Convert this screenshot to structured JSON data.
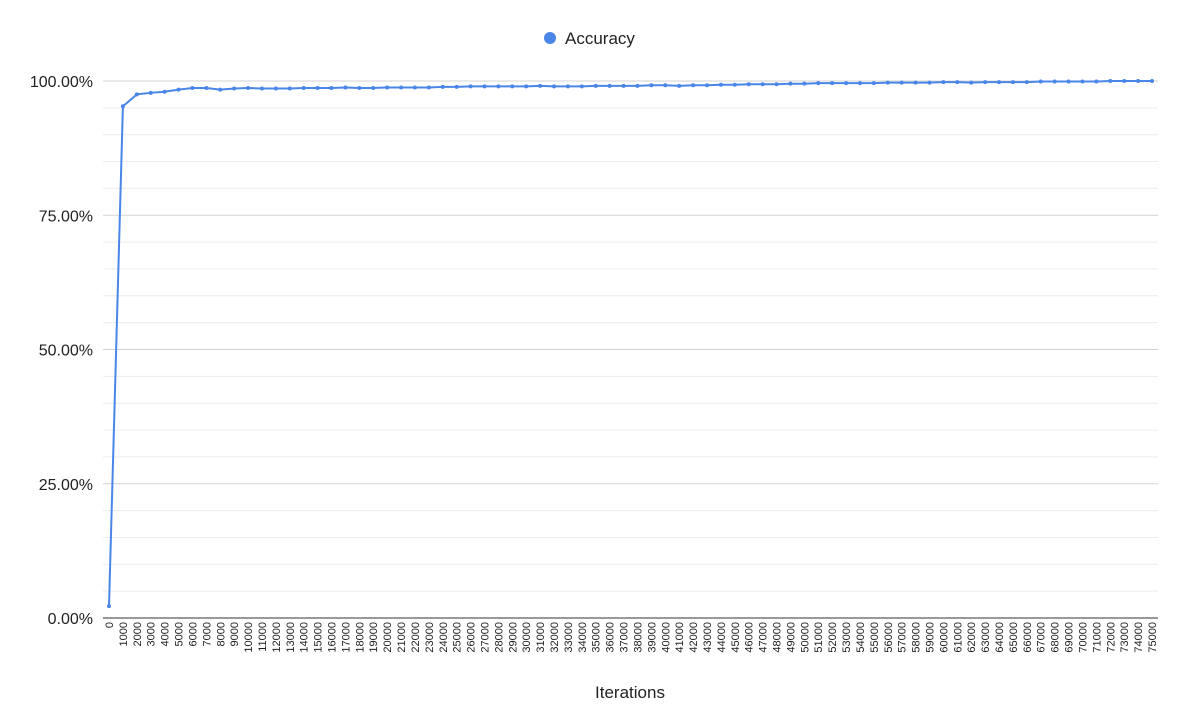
{
  "chart_data": {
    "type": "line",
    "title": "",
    "xlabel": "Iterations",
    "ylabel": "",
    "legend_position": "top-center",
    "grid": true,
    "colors": {
      "series": "#4a86e8",
      "grid_major": "#d3d3d3",
      "grid_minor": "#ececec",
      "axis": "#333333"
    },
    "ylim": [
      0,
      100
    ],
    "y_ticks": [
      "0.00%",
      "25.00%",
      "50.00%",
      "75.00%",
      "100.00%"
    ],
    "x": [
      0,
      1000,
      2000,
      3000,
      4000,
      5000,
      6000,
      7000,
      8000,
      9000,
      10000,
      11000,
      12000,
      13000,
      14000,
      15000,
      16000,
      17000,
      18000,
      19000,
      20000,
      21000,
      22000,
      23000,
      24000,
      25000,
      26000,
      27000,
      28000,
      29000,
      30000,
      31000,
      32000,
      33000,
      34000,
      35000,
      36000,
      37000,
      38000,
      39000,
      40000,
      41000,
      42000,
      43000,
      44000,
      45000,
      46000,
      47000,
      48000,
      49000,
      50000,
      51000,
      52000,
      53000,
      54000,
      55000,
      56000,
      57000,
      58000,
      59000,
      60000,
      61000,
      62000,
      63000,
      64000,
      65000,
      66000,
      67000,
      68000,
      69000,
      70000,
      71000,
      72000,
      73000,
      74000,
      75000
    ],
    "series": [
      {
        "name": "Accuracy",
        "values": [
          2.2,
          95.3,
          97.5,
          97.8,
          98.0,
          98.4,
          98.7,
          98.7,
          98.4,
          98.6,
          98.7,
          98.6,
          98.6,
          98.6,
          98.7,
          98.7,
          98.7,
          98.8,
          98.7,
          98.7,
          98.8,
          98.8,
          98.8,
          98.8,
          98.9,
          98.9,
          99.0,
          99.0,
          99.0,
          99.0,
          99.0,
          99.1,
          99.0,
          99.0,
          99.0,
          99.1,
          99.1,
          99.1,
          99.1,
          99.2,
          99.2,
          99.1,
          99.2,
          99.2,
          99.3,
          99.3,
          99.4,
          99.4,
          99.4,
          99.5,
          99.5,
          99.6,
          99.6,
          99.6,
          99.6,
          99.6,
          99.7,
          99.7,
          99.7,
          99.7,
          99.8,
          99.8,
          99.7,
          99.8,
          99.8,
          99.8,
          99.8,
          99.9,
          99.9,
          99.9,
          99.9,
          99.9,
          100.0,
          100.0,
          100.0,
          100.0
        ]
      }
    ]
  }
}
